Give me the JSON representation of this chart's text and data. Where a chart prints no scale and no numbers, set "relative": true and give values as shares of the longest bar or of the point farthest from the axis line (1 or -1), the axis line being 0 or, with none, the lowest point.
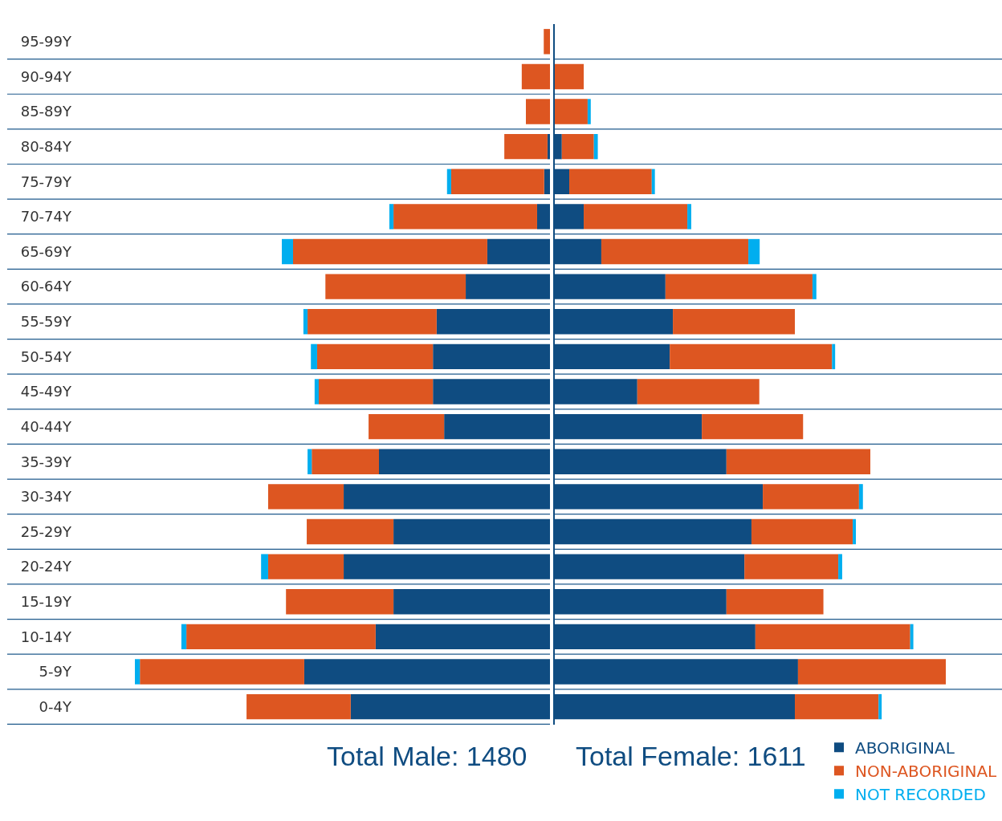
{
  "chart_data": [
    {
      "type": "bar",
      "orientation": "horizontal",
      "stacked": true,
      "relative": true,
      "grid": "y",
      "tick_labels": "y",
      "categories": [
        "95-99Y",
        "90-94Y",
        "85-89Y",
        "80-84Y",
        "75-79Y",
        "70-74Y",
        "65-69Y",
        "60-64Y",
        "55-59Y",
        "50-54Y",
        "45-49Y",
        "40-44Y",
        "35-39Y",
        "30-34Y",
        "25-29Y",
        "20-24Y",
        "15-19Y",
        "10-14Y",
        "5-9Y",
        "0-4Y"
      ],
      "series": [
        {
          "color": "#0f4c81",
          "values": [
            0,
            0,
            0,
            0.006,
            0.014,
            0.031,
            0.151,
            0.203,
            0.273,
            0.282,
            0.282,
            0.255,
            0.412,
            0.497,
            0.377,
            0.497,
            0.377,
            0.42,
            0.592,
            0.48
          ]
        },
        {
          "color": "#dd5621",
          "values": [
            0.015,
            0.068,
            0.058,
            0.104,
            0.224,
            0.346,
            0.468,
            0.338,
            0.311,
            0.279,
            0.275,
            0.182,
            0.162,
            0.182,
            0.209,
            0.182,
            0.259,
            0.456,
            0.396,
            0.251
          ]
        },
        {
          "color": "#00aeef",
          "values": [
            0,
            0,
            0,
            0,
            0.01,
            0.01,
            0.027,
            0,
            0.01,
            0.015,
            0.01,
            0,
            0.01,
            0,
            0,
            0.017,
            0,
            0.012,
            0.012,
            0
          ]
        }
      ],
      "annotations": [
        "Total Male: 1480"
      ]
    },
    {
      "type": "bar",
      "orientation": "horizontal",
      "stacked": true,
      "relative": true,
      "grid": "y",
      "tick_labels": false,
      "legend": "bottom right",
      "categories": [
        "95-99Y",
        "90-94Y",
        "85-89Y",
        "80-84Y",
        "75-79Y",
        "70-74Y",
        "65-69Y",
        "60-64Y",
        "55-59Y",
        "50-54Y",
        "45-49Y",
        "40-44Y",
        "35-39Y",
        "30-34Y",
        "25-29Y",
        "20-24Y",
        "15-19Y",
        "10-14Y",
        "5-9Y",
        "0-4Y"
      ],
      "series": [
        {
          "name": "ABORIGINAL",
          "color": "#0f4c81",
          "values": [
            0,
            0,
            0,
            0.018,
            0.037,
            0.074,
            0.119,
            0.283,
            0.302,
            0.294,
            0.211,
            0.376,
            0.439,
            0.532,
            0.503,
            0.485,
            0.439,
            0.513,
            0.622,
            0.614
          ]
        },
        {
          "name": "NON-ABORIGINAL",
          "color": "#dd5621",
          "values": [
            0,
            0.074,
            0.084,
            0.082,
            0.211,
            0.265,
            0.376,
            0.376,
            0.312,
            0.415,
            0.312,
            0.259,
            0.368,
            0.246,
            0.259,
            0.24,
            0.248,
            0.396,
            0.378,
            0.214
          ]
        },
        {
          "name": "NOT RECORDED",
          "color": "#00aeef",
          "values": [
            0,
            0,
            0.008,
            0.01,
            0.008,
            0.01,
            0.029,
            0.01,
            0,
            0.008,
            0,
            0,
            0,
            0.01,
            0.008,
            0.01,
            0,
            0.008,
            0,
            0.008
          ]
        }
      ],
      "annotations": [
        "Total Female: 1611"
      ]
    }
  ]
}
